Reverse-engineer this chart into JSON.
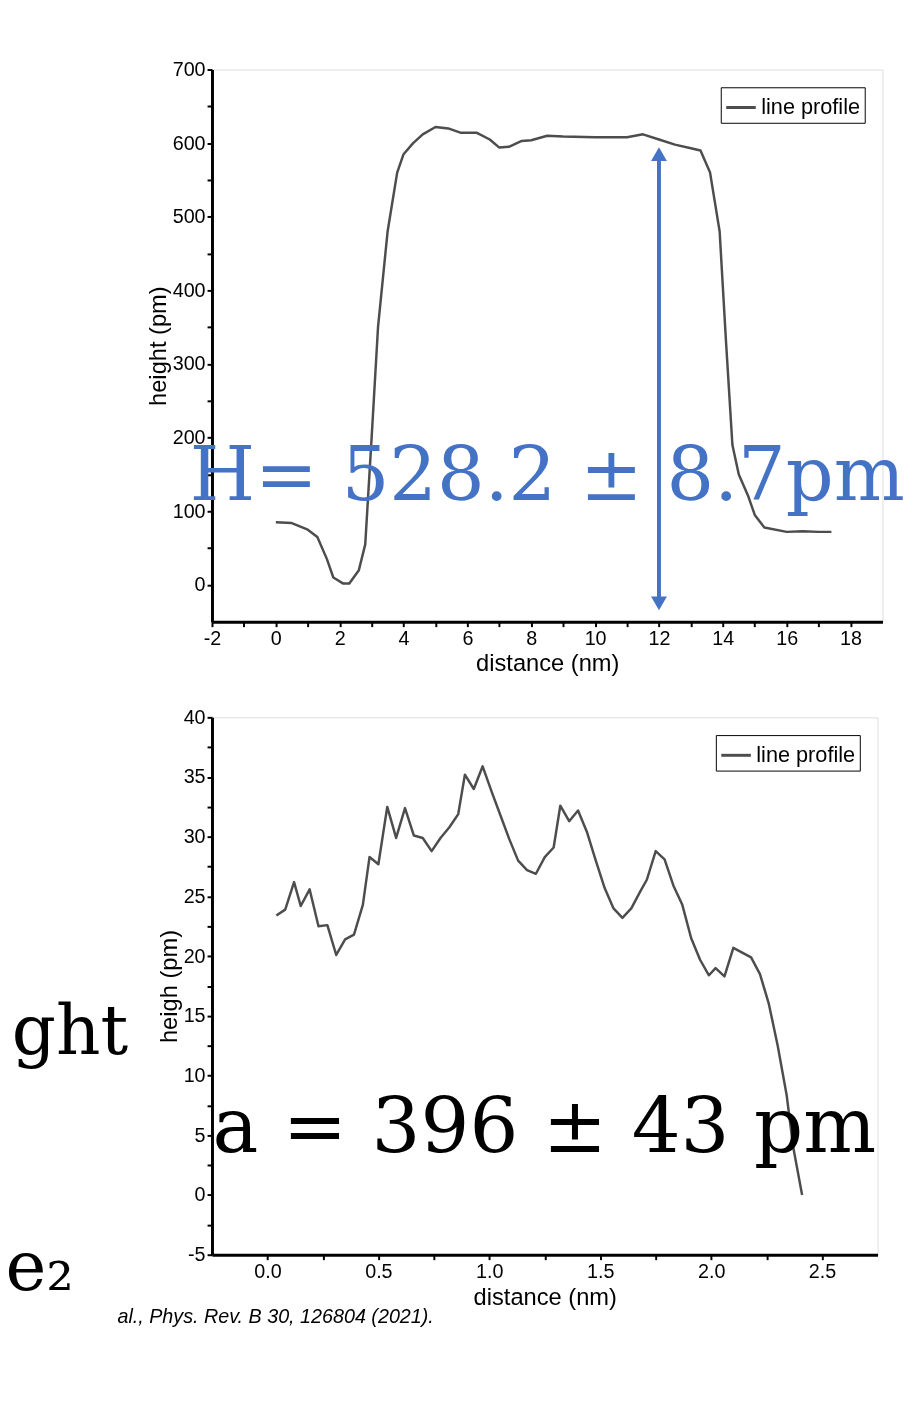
{
  "chart_data": [
    {
      "type": "line",
      "xlabel": "distance (nm)",
      "ylabel": "height (pm)",
      "xlim": [
        -2,
        19
      ],
      "ylim": [
        -50,
        700
      ],
      "xticks": [
        -2,
        {
          "value": -1,
          "label": null
        },
        0,
        {
          "value": 1,
          "label": null
        },
        2,
        {
          "value": 3,
          "label": null
        },
        4,
        {
          "value": 5,
          "label": null
        },
        6,
        {
          "value": 7,
          "label": null
        },
        8,
        {
          "value": 9,
          "label": null
        },
        10,
        {
          "value": 11,
          "label": null
        },
        12,
        {
          "value": 13,
          "label": null
        },
        14,
        {
          "value": 15,
          "label": null
        },
        16,
        {
          "value": 17,
          "label": null
        },
        18
      ],
      "yticks": [
        0,
        {
          "value": 50,
          "label": null
        },
        100,
        {
          "value": 150,
          "label": null
        },
        200,
        {
          "value": 250,
          "label": null
        },
        300,
        {
          "value": 350,
          "label": null
        },
        400,
        {
          "value": 450,
          "label": null
        },
        500,
        {
          "value": 550,
          "label": null
        },
        600,
        {
          "value": 650,
          "label": null
        },
        700
      ],
      "x": [
        0,
        0.5,
        1,
        1.3,
        1.6,
        1.8,
        2.1,
        2.3,
        2.6,
        2.8,
        3.0,
        3.2,
        3.5,
        3.8,
        4.0,
        4.3,
        4.6,
        5.0,
        5.4,
        5.8,
        6.3,
        6.7,
        7.0,
        7.3,
        7.7,
        8.0,
        8.5,
        9,
        10,
        11,
        11.5,
        12,
        12.5,
        13,
        13.3,
        13.6,
        13.9,
        14.1,
        14.3,
        14.5,
        14.8,
        15.0,
        15.3,
        16,
        16.5,
        17,
        17.4
      ],
      "series": [
        {
          "type": "line",
          "x": [
            12,
            12
          ],
          "color": "#4472c4",
          "marker": "triangle",
          "values": [
            -25,
            585
          ]
        },
        {
          "name": "line profile",
          "color": "#4d4d4d",
          "values": [
            85,
            84,
            75,
            65,
            35,
            10,
            2,
            2,
            20,
            55,
            200,
            350,
            480,
            560,
            585,
            600,
            612,
            622,
            620,
            614,
            614,
            605,
            594,
            595,
            603,
            604,
            610,
            609,
            608,
            608,
            612,
            605,
            598,
            593,
            590,
            560,
            480,
            330,
            190,
            150,
            120,
            95,
            78,
            72,
            73,
            72,
            72
          ]
        }
      ],
      "legend": "top right",
      "grid": false,
      "annotations": [
        "H= 528.2 ± 8.7pm"
      ]
    },
    {
      "type": "line",
      "xlabel": "distance (nm)",
      "ylabel": "heigh (pm)",
      "xlim": [
        -0.25,
        2.75
      ],
      "ylim": [
        -5,
        40
      ],
      "xticks": [
        {
          "value": 0,
          "label": "0.0"
        },
        {
          "value": 0.25,
          "label": null
        },
        {
          "value": 0.5,
          "label": "0.5"
        },
        {
          "value": 0.75,
          "label": null
        },
        {
          "value": 1,
          "label": "1.0"
        },
        {
          "value": 1.25,
          "label": null
        },
        {
          "value": 1.5,
          "label": "1.5"
        },
        {
          "value": 1.75,
          "label": null
        },
        {
          "value": 2,
          "label": "2.0"
        },
        {
          "value": 2.25,
          "label": null
        },
        {
          "value": 2.5,
          "label": "2.5"
        }
      ],
      "yticks": [
        -5,
        {
          "value": -2.5,
          "label": null
        },
        0,
        {
          "value": 2.5,
          "label": null
        },
        5,
        {
          "value": 7.5,
          "label": null
        },
        10,
        {
          "value": 12.5,
          "label": null
        },
        15,
        {
          "value": 17.5,
          "label": null
        },
        20,
        {
          "value": 22.5,
          "label": null
        },
        25,
        {
          "value": 27.5,
          "label": null
        },
        30,
        {
          "value": 32.5,
          "label": null
        },
        35,
        {
          "value": 37.5,
          "label": null
        },
        40
      ],
      "x": [
        0.04,
        0.08,
        0.12,
        0.15,
        0.19,
        0.23,
        0.27,
        0.31,
        0.35,
        0.39,
        0.43,
        0.46,
        0.5,
        0.54,
        0.58,
        0.62,
        0.66,
        0.7,
        0.74,
        0.78,
        0.82,
        0.86,
        0.89,
        0.93,
        0.97,
        1.01,
        1.05,
        1.09,
        1.13,
        1.17,
        1.21,
        1.25,
        1.29,
        1.32,
        1.36,
        1.4,
        1.44,
        1.48,
        1.52,
        1.56,
        1.6,
        1.64,
        1.68,
        1.71,
        1.75,
        1.79,
        1.83,
        1.87,
        1.91,
        1.95,
        1.99,
        2.02,
        2.06,
        2.1,
        2.14,
        2.18,
        2.22,
        2.26,
        2.3,
        2.34,
        2.37,
        2.41
      ],
      "series": [
        {
          "name": "line profile",
          "color": "#4d4d4d",
          "values": [
            23.4,
            23.9,
            26.2,
            24.2,
            25.6,
            22.5,
            22.6,
            20.1,
            21.4,
            21.8,
            24.3,
            28.3,
            27.7,
            32.5,
            29.9,
            32.4,
            30.1,
            29.9,
            28.8,
            29.9,
            30.8,
            31.9,
            35.2,
            34.0,
            35.9,
            33.8,
            31.8,
            29.8,
            28.0,
            27.2,
            26.9,
            28.3,
            29.1,
            32.6,
            31.3,
            32.2,
            30.4,
            28.0,
            25.7,
            24.0,
            23.2,
            24.0,
            25.4,
            26.4,
            28.8,
            28.1,
            25.9,
            24.3,
            21.5,
            19.7,
            18.4,
            19.0,
            18.3,
            20.7,
            20.3,
            19.9,
            18.5,
            16.0,
            12.5,
            8.4,
            4.0,
            0.0
          ]
        }
      ],
      "legend": "top right",
      "grid": false,
      "annotations": [
        "a = 396 ± 43 pm",
        "ght",
        "e₂",
        "al., Phys. Rev. B 30, 126804 (2021)."
      ]
    }
  ]
}
